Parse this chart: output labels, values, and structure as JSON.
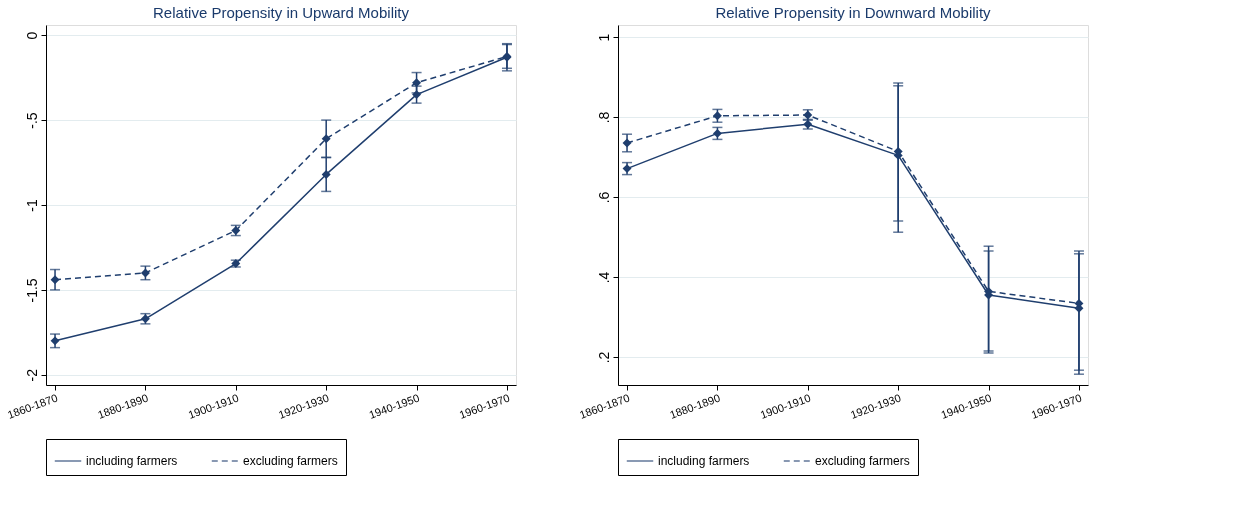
{
  "chart_data": [
    {
      "type": "line",
      "title": "Relative Propensity in Upward Mobility",
      "categories": [
        "1860-1870",
        "1880-1890",
        "1900-1910",
        "1920-1930",
        "1940-1950",
        "1960-1970"
      ],
      "series": [
        {
          "name": "including farmers",
          "color": "#1f3e6e",
          "line_style": "solid",
          "values": [
            -1.8,
            -1.67,
            -1.345,
            -0.82,
            -0.35,
            -0.13
          ],
          "errors": [
            0.04,
            0.03,
            0.02,
            0.1,
            0.05,
            0.08
          ]
        },
        {
          "name": "excluding farmers",
          "color": "#1f3e6e",
          "line_style": "dashed",
          "values": [
            -1.44,
            -1.4,
            -1.15,
            -0.61,
            -0.28,
            -0.125
          ],
          "errors": [
            0.06,
            0.04,
            0.03,
            0.11,
            0.06,
            0.07
          ]
        }
      ],
      "ylim": [
        -2.06,
        0.06
      ],
      "yticks": [
        {
          "value": -2,
          "label": "-2"
        },
        {
          "value": -1.5,
          "label": "-1.5"
        },
        {
          "value": -1,
          "label": "-1"
        },
        {
          "value": -0.5,
          "label": "-.5"
        },
        {
          "value": 0,
          "label": "0"
        }
      ],
      "grid": "y",
      "legend": "bottom",
      "marker": "diamond"
    },
    {
      "type": "line",
      "title": "Relative Propensity in Downward Mobility",
      "categories": [
        "1860-1870",
        "1880-1890",
        "1900-1910",
        "1920-1930",
        "1940-1950",
        "1960-1970"
      ],
      "series": [
        {
          "name": "including farmers",
          "color": "#1f3e6e",
          "line_style": "solid",
          "values": [
            0.671,
            0.759,
            0.782,
            0.704,
            0.355,
            0.322
          ],
          "errors": [
            0.015,
            0.015,
            0.012,
            [
              0.512,
              0.878
            ],
            [
              0.21,
              0.465
            ],
            [
              0.157,
              0.458
            ]
          ]
        },
        {
          "name": "excluding farmers",
          "color": "#1f3e6e",
          "line_style": "dashed",
          "values": [
            0.735,
            0.803,
            0.805,
            0.714,
            0.364,
            0.334
          ],
          "errors": [
            0.022,
            0.016,
            0.013,
            [
              0.54,
              0.885
            ],
            [
              0.215,
              0.477
            ],
            [
              0.167,
              0.465
            ]
          ]
        }
      ],
      "ylim": [
        0.13,
        1.03
      ],
      "yticks": [
        {
          "value": 0.2,
          "label": ".2"
        },
        {
          "value": 0.4,
          "label": ".4"
        },
        {
          "value": 0.6,
          "label": ".6"
        },
        {
          "value": 0.8,
          "label": ".8"
        },
        {
          "value": 1,
          "label": "1"
        }
      ],
      "grid": "y",
      "legend": "bottom",
      "marker": "diamond"
    }
  ]
}
